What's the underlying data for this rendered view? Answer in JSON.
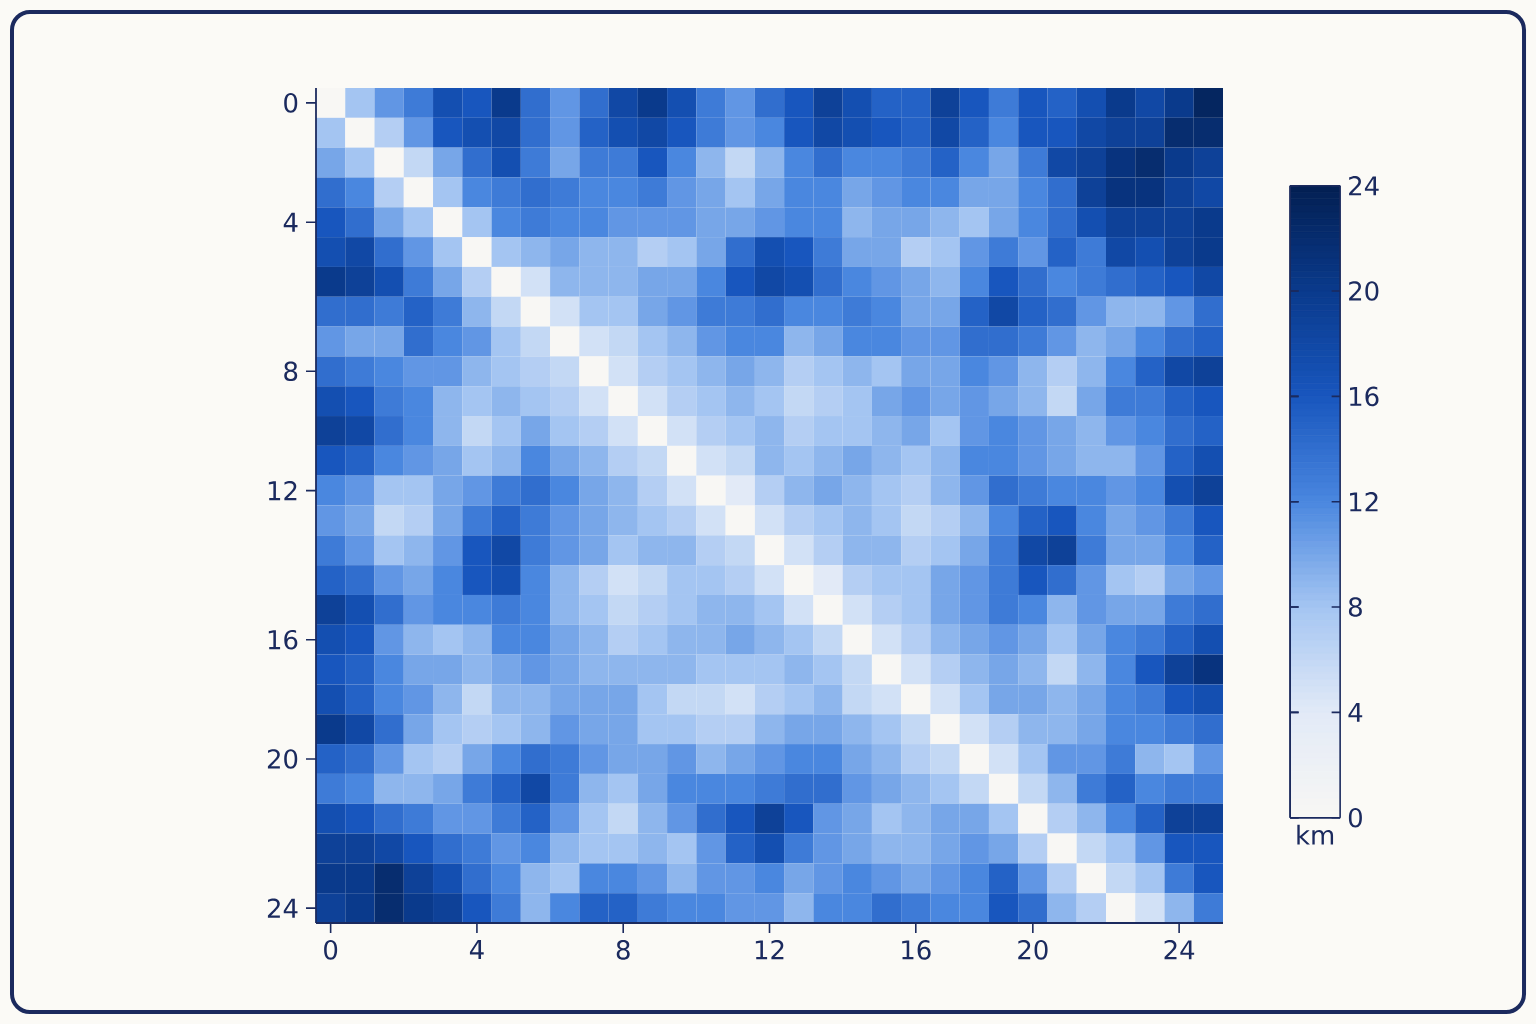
{
  "chart_data": {
    "type": "heatmap",
    "clabel": "km",
    "categories": [
      "0",
      null,
      null,
      null,
      null,
      "4",
      null,
      null,
      null,
      null,
      "8",
      null,
      null,
      null,
      null,
      "12",
      null,
      null,
      null,
      null,
      "16",
      null,
      null,
      null,
      "20",
      null,
      null,
      null,
      null,
      "24",
      null
    ],
    "y_categories": [
      "0",
      null,
      null,
      null,
      "4",
      null,
      null,
      null,
      null,
      "8",
      null,
      null,
      null,
      "12",
      null,
      null,
      null,
      null,
      "16",
      null,
      null,
      null,
      "20",
      null,
      null,
      null,
      null,
      "24"
    ],
    "clim": [
      0,
      24
    ],
    "cticks": [
      0,
      4,
      8,
      12,
      16,
      20,
      24
    ],
    "cells": [
      [
        0,
        8,
        11,
        13,
        17,
        16,
        20,
        14,
        11,
        14,
        18,
        20,
        17,
        13,
        11,
        14,
        16,
        19,
        17,
        15,
        15,
        19,
        16,
        13,
        16,
        15,
        17,
        20,
        18,
        20,
        23
      ],
      [
        8,
        0,
        7,
        11,
        16,
        17,
        18,
        14,
        11,
        15,
        17,
        18,
        16,
        13,
        11,
        12,
        16,
        18,
        17,
        16,
        15,
        18,
        15,
        12,
        16,
        16,
        18,
        19,
        19,
        22,
        22
      ],
      [
        10,
        8,
        0,
        6,
        10,
        14,
        17,
        13,
        10,
        13,
        13,
        16,
        12,
        9,
        6,
        9,
        12,
        14,
        12,
        12,
        13,
        15,
        12,
        10,
        13,
        18,
        19,
        21,
        22,
        20,
        19
      ],
      [
        14,
        12,
        7,
        0,
        8,
        12,
        13,
        14,
        13,
        12,
        12,
        13,
        11,
        10,
        8,
        10,
        12,
        12,
        10,
        11,
        12,
        12,
        10,
        10,
        12,
        14,
        19,
        21,
        21,
        19,
        18
      ],
      [
        16,
        14,
        10,
        8,
        0,
        8,
        12,
        13,
        12,
        12,
        11,
        11,
        11,
        10,
        10,
        11,
        12,
        12,
        9,
        10,
        10,
        9,
        8,
        10,
        12,
        14,
        17,
        19,
        19,
        19,
        20
      ],
      [
        17,
        18,
        14,
        11,
        8,
        0,
        8,
        9,
        10,
        9,
        9,
        7,
        8,
        10,
        14,
        17,
        16,
        13,
        10,
        10,
        7,
        8,
        11,
        13,
        11,
        15,
        13,
        18,
        17,
        19,
        20
      ],
      [
        20,
        19,
        17,
        13,
        10,
        7,
        0,
        5,
        9,
        9,
        9,
        10,
        10,
        12,
        16,
        18,
        17,
        14,
        12,
        11,
        10,
        9,
        12,
        16,
        14,
        12,
        13,
        14,
        15,
        16,
        18
      ],
      [
        14,
        14,
        13,
        15,
        13,
        9,
        6,
        0,
        5,
        8,
        8,
        10,
        11,
        13,
        13,
        14,
        12,
        12,
        13,
        12,
        10,
        10,
        15,
        18,
        15,
        14,
        11,
        9,
        9,
        11,
        14
      ],
      [
        11,
        10,
        10,
        14,
        12,
        11,
        8,
        6,
        0,
        5,
        6,
        8,
        9,
        11,
        12,
        12,
        9,
        10,
        12,
        12,
        11,
        11,
        14,
        14,
        13,
        11,
        9,
        10,
        12,
        14,
        15
      ],
      [
        14,
        13,
        12,
        11,
        11,
        9,
        8,
        7,
        6,
        0,
        5,
        7,
        8,
        9,
        10,
        9,
        7,
        8,
        9,
        8,
        10,
        10,
        12,
        11,
        9,
        7,
        9,
        12,
        15,
        18,
        19
      ],
      [
        17,
        16,
        13,
        12,
        9,
        8,
        9,
        8,
        7,
        5,
        0,
        5,
        7,
        8,
        9,
        8,
        6,
        7,
        8,
        10,
        11,
        10,
        11,
        10,
        9,
        6,
        10,
        13,
        13,
        15,
        16
      ],
      [
        19,
        18,
        14,
        12,
        9,
        6,
        8,
        10,
        8,
        7,
        5,
        0,
        5,
        7,
        8,
        9,
        7,
        8,
        8,
        9,
        10,
        8,
        11,
        12,
        11,
        10,
        9,
        11,
        12,
        14,
        15
      ],
      [
        16,
        15,
        12,
        11,
        10,
        8,
        9,
        12,
        10,
        9,
        7,
        6,
        0,
        5,
        6,
        9,
        8,
        9,
        10,
        9,
        8,
        9,
        12,
        12,
        11,
        10,
        9,
        9,
        11,
        15,
        17
      ],
      [
        12,
        11,
        8,
        8,
        10,
        11,
        13,
        14,
        12,
        10,
        9,
        7,
        5,
        0,
        4,
        7,
        9,
        10,
        9,
        8,
        7,
        9,
        11,
        14,
        13,
        12,
        12,
        11,
        12,
        17,
        19
      ],
      [
        11,
        10,
        6,
        7,
        10,
        13,
        15,
        13,
        11,
        10,
        9,
        8,
        7,
        5,
        0,
        5,
        7,
        8,
        9,
        8,
        6,
        7,
        9,
        12,
        15,
        16,
        12,
        10,
        11,
        13,
        16
      ],
      [
        13,
        11,
        8,
        9,
        11,
        16,
        18,
        13,
        11,
        10,
        8,
        9,
        9,
        7,
        6,
        0,
        5,
        7,
        9,
        9,
        7,
        8,
        10,
        13,
        18,
        19,
        13,
        10,
        10,
        12,
        15
      ],
      [
        15,
        14,
        11,
        10,
        12,
        16,
        17,
        12,
        9,
        7,
        5,
        6,
        8,
        8,
        7,
        5,
        0,
        4,
        7,
        8,
        8,
        10,
        11,
        13,
        16,
        14,
        11,
        8,
        7,
        10,
        11
      ],
      [
        19,
        17,
        14,
        11,
        12,
        12,
        13,
        12,
        9,
        8,
        6,
        7,
        8,
        9,
        9,
        8,
        5,
        0,
        5,
        7,
        8,
        10,
        11,
        13,
        12,
        9,
        11,
        10,
        10,
        13,
        14
      ],
      [
        17,
        16,
        11,
        9,
        8,
        9,
        12,
        12,
        10,
        9,
        7,
        8,
        9,
        9,
        10,
        9,
        8,
        6,
        0,
        5,
        7,
        9,
        10,
        11,
        10,
        8,
        10,
        12,
        13,
        15,
        17
      ],
      [
        16,
        15,
        12,
        10,
        10,
        9,
        10,
        11,
        10,
        9,
        9,
        9,
        9,
        8,
        8,
        8,
        9,
        8,
        6,
        0,
        5,
        7,
        9,
        10,
        9,
        6,
        9,
        12,
        16,
        19,
        21
      ],
      [
        17,
        15,
        12,
        11,
        9,
        6,
        9,
        9,
        10,
        10,
        10,
        8,
        6,
        6,
        5,
        7,
        8,
        9,
        6,
        5,
        0,
        5,
        8,
        10,
        10,
        9,
        10,
        12,
        13,
        16,
        17
      ],
      [
        20,
        18,
        14,
        10,
        8,
        7,
        8,
        9,
        11,
        10,
        10,
        8,
        8,
        7,
        7,
        9,
        10,
        10,
        9,
        8,
        6,
        0,
        5,
        7,
        9,
        9,
        10,
        12,
        12,
        13,
        14
      ],
      [
        15,
        14,
        11,
        8,
        7,
        10,
        12,
        14,
        13,
        11,
        10,
        10,
        11,
        9,
        10,
        11,
        12,
        12,
        10,
        9,
        7,
        6,
        0,
        5,
        8,
        11,
        11,
        13,
        9,
        8,
        11
      ],
      [
        13,
        12,
        9,
        9,
        10,
        13,
        15,
        18,
        13,
        9,
        8,
        10,
        12,
        12,
        12,
        13,
        14,
        14,
        11,
        10,
        9,
        8,
        6,
        0,
        6,
        9,
        13,
        15,
        12,
        13,
        13
      ],
      [
        17,
        16,
        14,
        13,
        11,
        11,
        13,
        15,
        11,
        8,
        6,
        9,
        11,
        14,
        16,
        19,
        16,
        11,
        10,
        8,
        9,
        10,
        10,
        8,
        0,
        7,
        9,
        12,
        15,
        19,
        19
      ],
      [
        19,
        19,
        18,
        16,
        14,
        13,
        11,
        12,
        9,
        8,
        8,
        9,
        8,
        11,
        15,
        17,
        13,
        11,
        10,
        9,
        9,
        10,
        11,
        10,
        7,
        0,
        6,
        8,
        11,
        16,
        16
      ],
      [
        20,
        20,
        22,
        19,
        17,
        14,
        12,
        9,
        8,
        12,
        12,
        11,
        9,
        11,
        11,
        12,
        10,
        11,
        12,
        11,
        10,
        11,
        12,
        15,
        11,
        7,
        0,
        6,
        8,
        13,
        16
      ],
      [
        19,
        20,
        22,
        20,
        19,
        16,
        13,
        9,
        12,
        15,
        15,
        13,
        12,
        12,
        11,
        11,
        9,
        12,
        12,
        14,
        13,
        12,
        12,
        16,
        14,
        9,
        7,
        0,
        5,
        9,
        13
      ]
    ]
  }
}
